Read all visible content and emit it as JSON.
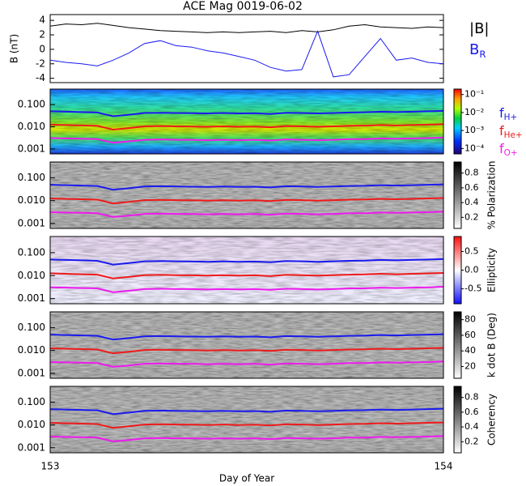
{
  "chart_data": [
    {
      "type": "line",
      "title": "ACE Mag 0019-06-02",
      "ylabel": "B (nT)",
      "x": [
        153,
        153.04,
        153.08,
        153.12,
        153.16,
        153.2,
        153.24,
        153.28,
        153.32,
        153.36,
        153.4,
        153.44,
        153.48,
        153.52,
        153.56,
        153.6,
        153.64,
        153.68,
        153.72,
        153.76,
        153.8,
        153.84,
        153.88,
        153.92,
        153.96,
        154
      ],
      "xlim": [
        153,
        154
      ],
      "ylim": [
        -4.6,
        4.8
      ],
      "yticks": [
        4,
        2,
        0,
        -2,
        -4
      ],
      "series": [
        {
          "name": "|B|",
          "color": "#000000",
          "values": [
            3.2,
            3.5,
            3.4,
            3.6,
            3.3,
            3.0,
            2.8,
            2.6,
            2.5,
            2.4,
            2.3,
            2.4,
            2.3,
            2.4,
            2.5,
            2.3,
            2.6,
            2.4,
            2.7,
            3.2,
            3.4,
            3.1,
            3.0,
            2.9,
            3.1,
            3.0
          ]
        },
        {
          "name": "B",
          "name_sub": "R",
          "color": "#1a1aee",
          "values": [
            -1.5,
            -1.8,
            -2.0,
            -2.3,
            -1.5,
            -0.5,
            0.8,
            1.2,
            0.5,
            0.3,
            -0.2,
            -0.5,
            -1.0,
            -1.5,
            -2.5,
            -3.0,
            -2.8,
            2.5,
            -3.8,
            -3.5,
            -1.0,
            1.5,
            -1.5,
            -1.2,
            -1.8,
            -2.0
          ]
        }
      ]
    },
    {
      "type": "spectrogram",
      "colormap": "rainbow",
      "xlim": [
        153,
        154
      ],
      "ylim": [
        0.0006,
        0.5
      ],
      "yticks": [
        {
          "value": 0.1,
          "label": "0.100"
        },
        {
          "value": 0.01,
          "label": "0.010"
        },
        {
          "value": 0.001,
          "label": "0.001"
        }
      ],
      "clim": [
        5e-05,
        0.2
      ],
      "clog": true,
      "cticks": [
        {
          "value": 0.1,
          "label": "10⁻¹"
        },
        {
          "value": 0.01,
          "label": "10⁻²"
        },
        {
          "value": 0.001,
          "label": "10⁻³"
        },
        {
          "value": 0.0001,
          "label": "10⁻⁴"
        }
      ],
      "x": [
        153,
        153.04,
        153.08,
        153.12,
        153.16,
        153.2,
        153.24,
        153.28,
        153.32,
        153.36,
        153.4,
        153.44,
        153.48,
        153.52,
        153.56,
        153.6,
        153.64,
        153.68,
        153.72,
        153.76,
        153.8,
        153.84,
        153.88,
        153.92,
        153.96,
        154
      ],
      "series": [
        {
          "name": "f",
          "name_sub": "H+",
          "color": "#1a1aee",
          "values": [
            0.05,
            0.048,
            0.046,
            0.044,
            0.03,
            0.035,
            0.042,
            0.043,
            0.042,
            0.041,
            0.04,
            0.042,
            0.04,
            0.041,
            0.038,
            0.043,
            0.042,
            0.04,
            0.042,
            0.044,
            0.045,
            0.048,
            0.046,
            0.048,
            0.05,
            0.052
          ]
        },
        {
          "name": "f",
          "name_sub": "He+",
          "color": "#ee1a1a",
          "values": [
            0.0125,
            0.012,
            0.0115,
            0.011,
            0.0075,
            0.0088,
            0.0105,
            0.0108,
            0.0105,
            0.0103,
            0.01,
            0.0105,
            0.01,
            0.0103,
            0.0095,
            0.0108,
            0.0105,
            0.01,
            0.0105,
            0.011,
            0.0113,
            0.012,
            0.0115,
            0.012,
            0.0125,
            0.013
          ]
        },
        {
          "name": "f",
          "name_sub": "O+",
          "color": "#ee1aee",
          "values": [
            0.0031,
            0.003,
            0.0029,
            0.0028,
            0.0019,
            0.0022,
            0.0026,
            0.0027,
            0.0026,
            0.0026,
            0.0025,
            0.0026,
            0.0025,
            0.0026,
            0.0024,
            0.0027,
            0.0026,
            0.0025,
            0.0026,
            0.0028,
            0.0028,
            0.003,
            0.0029,
            0.003,
            0.0031,
            0.0033
          ]
        }
      ]
    },
    {
      "type": "spectrogram",
      "colormap": "grey",
      "xlim": [
        153,
        154
      ],
      "ylim": [
        0.0006,
        0.5
      ],
      "yticks": [
        {
          "value": 0.1,
          "label": "0.100"
        },
        {
          "value": 0.01,
          "label": "0.010"
        },
        {
          "value": 0.001,
          "label": "0.001"
        }
      ],
      "clim": [
        0.05,
        0.95
      ],
      "cticks": [
        0.8,
        0.6,
        0.4,
        0.2
      ],
      "clabel": "% Polarization"
    },
    {
      "type": "spectrogram",
      "colormap": "bwr",
      "xlim": [
        153,
        154
      ],
      "ylim": [
        0.0006,
        0.5
      ],
      "yticks": [
        {
          "value": 0.1,
          "label": "0.100"
        },
        {
          "value": 0.01,
          "label": "0.010"
        },
        {
          "value": 0.001,
          "label": "0.001"
        }
      ],
      "clim": [
        -0.9,
        0.9
      ],
      "cticks": [
        0.5,
        {
          "value": 0,
          "label": "0.0"
        },
        -0.5
      ],
      "clabel": "Ellipticity"
    },
    {
      "type": "spectrogram",
      "colormap": "grey",
      "xlim": [
        153,
        154
      ],
      "ylim": [
        0.0006,
        0.5
      ],
      "yticks": [
        {
          "value": 0.1,
          "label": "0.100"
        },
        {
          "value": 0.01,
          "label": "0.010"
        },
        {
          "value": 0.001,
          "label": "0.001"
        }
      ],
      "clim": [
        5,
        90
      ],
      "cticks": [
        80,
        60,
        40,
        20
      ],
      "clabel": "k dot B (Deg)"
    },
    {
      "type": "spectrogram",
      "colormap": "grey",
      "xlim": [
        153,
        154
      ],
      "ylim": [
        0.0006,
        0.5
      ],
      "yticks": [
        {
          "value": 0.1,
          "label": "0.100"
        },
        {
          "value": 0.01,
          "label": "0.010"
        },
        {
          "value": 0.001,
          "label": "0.001"
        }
      ],
      "clim": [
        0.05,
        0.95
      ],
      "cticks": [
        0.8,
        0.6,
        0.4,
        0.2
      ],
      "clabel": "Coherency",
      "xticks": [
        153,
        154
      ],
      "xlabel": "Day of Year"
    }
  ]
}
